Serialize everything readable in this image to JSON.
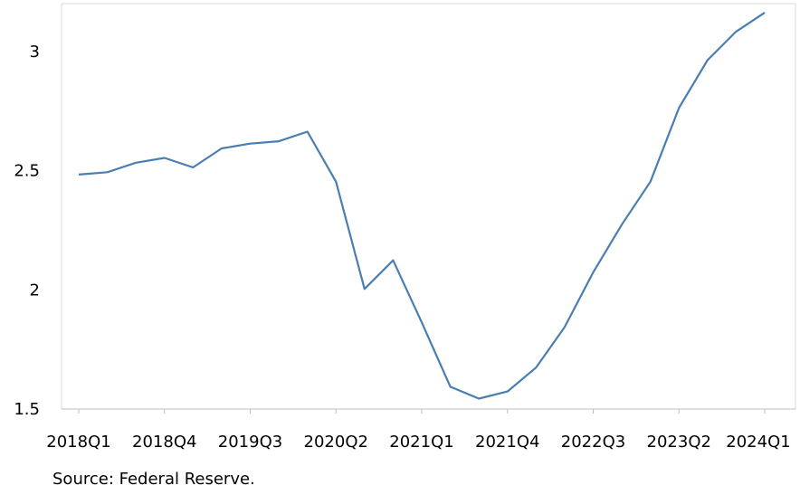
{
  "source": "Source: Federal Reserve.",
  "colors": {
    "line": "#4a7eb0",
    "frame": "#d9d9d9",
    "axis": "#bfbfbf"
  },
  "chart_data": {
    "type": "line",
    "x": [
      "2018Q1",
      "2018Q2",
      "2018Q3",
      "2018Q4",
      "2019Q1",
      "2019Q2",
      "2019Q3",
      "2019Q4",
      "2020Q1",
      "2020Q2",
      "2020Q3",
      "2020Q4",
      "2021Q1",
      "2021Q2",
      "2021Q3",
      "2021Q4",
      "2022Q1",
      "2022Q2",
      "2022Q3",
      "2022Q4",
      "2023Q1",
      "2023Q2",
      "2023Q3",
      "2023Q4",
      "2024Q1"
    ],
    "series": [
      {
        "values": [
          2.48,
          2.49,
          2.53,
          2.55,
          2.51,
          2.59,
          2.61,
          2.62,
          2.66,
          2.45,
          2.0,
          2.12,
          1.86,
          1.59,
          1.54,
          1.57,
          1.67,
          1.84,
          2.07,
          2.27,
          2.45,
          2.76,
          2.96,
          3.08,
          3.16
        ]
      }
    ],
    "x_tick_labels": [
      "2018Q1",
      "2018Q4",
      "2019Q3",
      "2020Q2",
      "2021Q1",
      "2021Q4",
      "2022Q3",
      "2023Q2",
      "2024Q1"
    ],
    "y_ticks": [
      1.5,
      2,
      2.5,
      3
    ],
    "y_tick_labels": [
      "1.5",
      "2",
      "2.5",
      "3"
    ],
    "ylim": [
      1.5,
      3.2
    ],
    "grid": false,
    "title": "",
    "xlabel": "",
    "ylabel": ""
  }
}
